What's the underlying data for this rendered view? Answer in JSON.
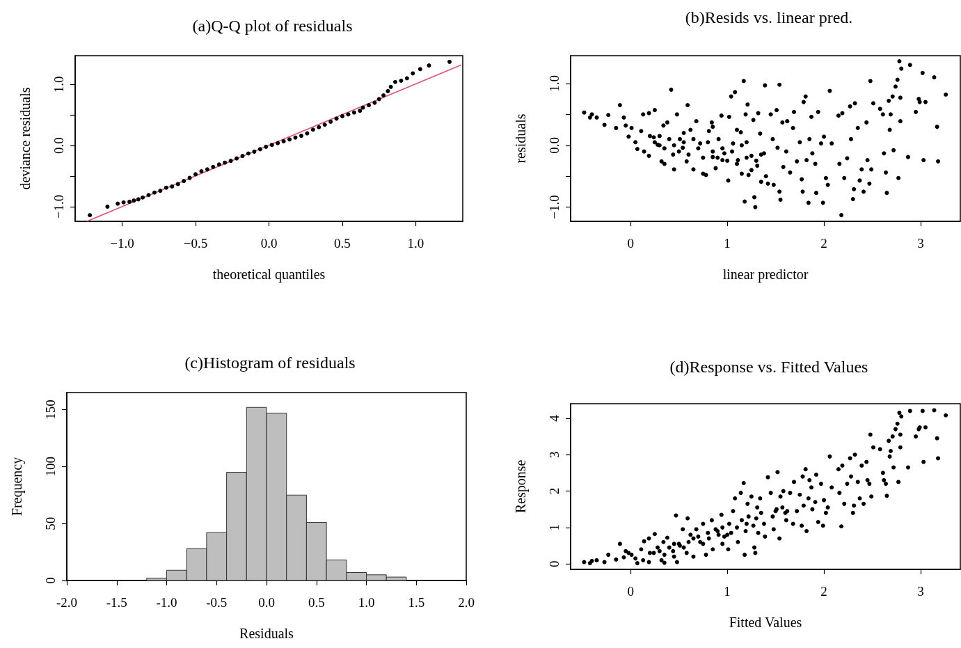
{
  "chart_data": [
    {
      "type": "scatter",
      "title": "(a)Q-Q plot of residuals",
      "xlabel": "theoretical quantiles",
      "ylabel": "deviance residuals",
      "xlim": [
        -1.32,
        1.32
      ],
      "ylim": [
        -1.24,
        1.47
      ],
      "xticks": [
        {
          "value": -1,
          "label": "−1.0"
        },
        {
          "value": -0.5,
          "label": "−0.5"
        },
        {
          "value": 0,
          "label": "0.0"
        },
        {
          "value": 0.5,
          "label": "0.5"
        },
        {
          "value": 1,
          "label": "1.0"
        }
      ],
      "yticks": [
        {
          "value": -1,
          "label": "−1.0"
        },
        {
          "value": -0.5,
          "label": null
        },
        {
          "value": 0,
          "label": "0.0"
        },
        {
          "value": 0.5,
          "label": null
        },
        {
          "value": 1,
          "label": "1.0"
        }
      ],
      "marker": "circle",
      "series": [
        {
          "color": "#000000",
          "x": [
            -1.22,
            -1.1,
            -1.03,
            -0.99,
            -0.95,
            -0.92,
            -0.89,
            -0.86,
            -0.82,
            -0.78,
            -0.74,
            -0.7,
            -0.66,
            -0.62,
            -0.58,
            -0.54,
            -0.5,
            -0.46,
            -0.42,
            -0.38,
            -0.34,
            -0.3,
            -0.26,
            -0.22,
            -0.18,
            -0.14,
            -0.1,
            -0.06,
            -0.02,
            0.02,
            0.06,
            0.1,
            0.14,
            0.18,
            0.22,
            0.26,
            0.3,
            0.34,
            0.38,
            0.42,
            0.46,
            0.5,
            0.54,
            0.58,
            0.62,
            0.64,
            0.68,
            0.72,
            0.75,
            0.78,
            0.81,
            0.83,
            0.86,
            0.9,
            0.94,
            0.98,
            1.03,
            1.09,
            1.23
          ],
          "values": [
            -1.14,
            -1.0,
            -0.95,
            -0.93,
            -0.92,
            -0.9,
            -0.88,
            -0.85,
            -0.81,
            -0.77,
            -0.74,
            -0.69,
            -0.67,
            -0.63,
            -0.58,
            -0.53,
            -0.47,
            -0.42,
            -0.39,
            -0.35,
            -0.31,
            -0.28,
            -0.25,
            -0.21,
            -0.17,
            -0.13,
            -0.1,
            -0.06,
            -0.02,
            0.01,
            0.04,
            0.07,
            0.1,
            0.13,
            0.16,
            0.2,
            0.26,
            0.3,
            0.34,
            0.39,
            0.44,
            0.48,
            0.51,
            0.54,
            0.57,
            0.62,
            0.66,
            0.7,
            0.76,
            0.82,
            0.89,
            0.96,
            1.04,
            1.06,
            1.1,
            1.18,
            1.25,
            1.31,
            1.37
          ]
        },
        {
          "type": "line",
          "marker": "none",
          "color": "#df536b",
          "x": [
            -1.24,
            1.31
          ],
          "values": [
            -1.24,
            1.32
          ]
        }
      ]
    },
    {
      "type": "scatter",
      "title": "(b)Resids vs. linear pred.",
      "xlabel": "linear predictor",
      "ylabel": "residuals",
      "xlim": [
        -0.62,
        3.41
      ],
      "ylim": [
        -1.23,
        1.45
      ],
      "xticks": [
        0,
        1,
        2,
        3
      ],
      "yticks": [
        {
          "value": -1,
          "label": "−1.0"
        },
        {
          "value": -0.5,
          "label": null
        },
        {
          "value": 0,
          "label": "0.0"
        },
        {
          "value": 0.5,
          "label": null
        },
        {
          "value": 1,
          "label": "1.0"
        }
      ],
      "marker": "circle",
      "series": [
        {
          "color": "#000000",
          "x": [
            -0.48,
            -0.42,
            -0.4,
            -0.35,
            -0.27,
            -0.23,
            -0.15,
            -0.11,
            -0.07,
            -0.05,
            -0.02,
            0.01,
            0.05,
            0.07,
            0.11,
            0.13,
            0.14,
            0.19,
            0.19,
            0.24,
            0.25,
            0.28,
            0.32,
            0.34,
            0.35,
            0.38,
            0.42,
            0.44,
            0.45,
            0.48,
            0.51,
            0.54,
            0.58,
            0.59,
            0.62,
            0.65,
            0.68,
            0.72,
            0.75,
            0.78,
            0.81,
            0.84,
            0.85,
            0.88,
            0.91,
            0.94,
            0.95,
            0.97,
            1.01,
            1.02,
            1.04,
            1.06,
            1.08,
            1.11,
            1.14,
            1.15,
            1.17,
            1.18,
            1.19,
            1.21,
            1.22,
            1.25,
            1.27,
            1.28,
            1.29,
            1.31,
            1.32,
            1.34,
            1.35,
            1.38,
            1.39,
            1.42,
            1.45,
            1.47,
            1.48,
            1.51,
            1.52,
            1.54,
            1.54,
            1.55,
            1.57,
            1.58,
            1.61,
            1.62,
            1.65,
            1.68,
            1.69,
            1.72,
            1.75,
            1.77,
            1.78,
            1.79,
            1.81,
            1.82,
            1.84,
            1.85,
            1.87,
            1.88,
            1.91,
            1.92,
            1.94,
            1.97,
            1.99,
            2.0,
            2.02,
            2.04,
            2.06,
            2.08,
            2.15,
            2.16,
            2.18,
            2.19,
            2.21,
            2.24,
            2.27,
            2.28,
            2.3,
            2.31,
            2.32,
            2.35,
            2.37,
            2.39,
            2.41,
            2.44,
            2.45,
            2.47,
            2.48,
            2.49,
            2.51,
            2.58,
            2.61,
            2.62,
            2.64,
            2.65,
            2.67,
            2.68,
            2.69,
            2.71,
            2.72,
            2.74,
            2.76,
            2.77,
            2.78,
            2.79,
            2.79,
            2.8,
            2.87,
            2.89,
            2.95,
            2.98,
            2.99,
            3.02,
            3.03,
            3.05,
            3.14,
            3.17,
            3.18,
            3.26,
            0.2,
            0.25,
            0.3,
            0.35,
            0.4,
            0.45,
            0.5,
            0.55,
            0.6,
            0.65,
            0.7,
            0.75,
            0.8,
            0.85,
            0.9,
            0.95,
            1.0,
            1.05,
            1.1,
            1.15,
            1.2,
            1.25,
            1.3,
            1.35,
            1.4,
            0.3,
            0.55,
            0.85,
            1.1,
            1.2
          ],
          "values": [
            0.53,
            0.45,
            0.5,
            0.45,
            0.33,
            0.49,
            0.28,
            0.65,
            0.45,
            0.32,
            0.14,
            0.28,
            0.05,
            -0.06,
            0.23,
            0.5,
            -0.1,
            0.52,
            -0.17,
            0.13,
            0.57,
            0.01,
            -0.26,
            0.32,
            -0.3,
            0.37,
            0.9,
            -0.15,
            -0.39,
            0.5,
            0.1,
            -0.04,
            -0.26,
            0.65,
            0.25,
            -0.39,
            0.39,
            0.03,
            -0.46,
            -0.48,
            0.23,
            0.37,
            -0.19,
            -0.37,
            0.1,
            0.48,
            -0.24,
            -0.13,
            -0.57,
            0.46,
            0.79,
            0.03,
            0.86,
            -0.24,
            0.21,
            -0.46,
            1.04,
            -0.91,
            0.5,
            0.66,
            -0.48,
            -0.17,
            0.41,
            -0.84,
            -1.0,
            -0.33,
            0.52,
            0.19,
            -0.59,
            -0.13,
            0.97,
            -0.62,
            0.5,
            0.1,
            -0.64,
            0.57,
            -0.04,
            0.98,
            -0.75,
            -0.88,
            0.37,
            -0.35,
            -0.1,
            0.39,
            -0.44,
            0.28,
            0.54,
            -0.26,
            0.05,
            -0.55,
            -0.75,
            0.7,
            0.79,
            -0.24,
            -0.93,
            0.1,
            0.46,
            -0.13,
            -0.3,
            -0.77,
            0.54,
            0.03,
            -0.93,
            0.14,
            -0.53,
            -0.64,
            0.88,
            0.03,
            0.48,
            -0.3,
            -1.13,
            0.52,
            -0.53,
            -0.21,
            0.63,
            0.1,
            -0.87,
            -0.71,
            0.68,
            0.28,
            -0.57,
            -0.39,
            -0.75,
            0.37,
            -0.24,
            -0.62,
            1.04,
            -0.39,
            0.68,
            0.59,
            0.5,
            -0.13,
            -0.44,
            -0.77,
            0.72,
            0.25,
            0.5,
            0.79,
            -0.08,
            0.95,
            1.06,
            -0.53,
            1.36,
            0.77,
            0.39,
            1.24,
            -0.19,
            1.3,
            0.54,
            0.75,
            0.7,
            1.17,
            -0.24,
            0.7,
            1.1,
            0.3,
            -0.26,
            0.82,
            0.15,
            0.05,
            0.0,
            -0.05,
            0.1,
            0.0,
            -0.1,
            0.05,
            -0.15,
            0.1,
            -0.05,
            -0.2,
            0.05,
            -0.1,
            -0.2,
            -0.05,
            -0.25,
            -0.1,
            -0.3,
            0.0,
            -0.2,
            -0.4,
            -0.25,
            -0.15,
            -0.5,
            0.15,
            0.2,
            0.3,
            0.25,
            0.05
          ]
        }
      ]
    },
    {
      "type": "histogram",
      "title": "(c)Histogram of residuals",
      "xlabel": "Residuals",
      "ylabel": "Frequency",
      "xlim": [
        -2,
        2
      ],
      "ylim": [
        0,
        165
      ],
      "xticks": [
        {
          "value": -2,
          "label": "-2.0"
        },
        {
          "value": -1.5,
          "label": "-1.5"
        },
        {
          "value": -1,
          "label": "-1.0"
        },
        {
          "value": -0.5,
          "label": "-0.5"
        },
        {
          "value": 0,
          "label": "0.0"
        },
        {
          "value": 0.5,
          "label": "0.5"
        },
        {
          "value": 1,
          "label": "1.0"
        },
        {
          "value": 1.5,
          "label": "1.5"
        },
        {
          "value": 2,
          "label": "2.0"
        }
      ],
      "yticks": [
        0,
        50,
        100,
        150
      ],
      "color": "#bebebe",
      "bins": [
        -1.2,
        -1.0,
        -0.8,
        -0.6,
        -0.4,
        -0.2,
        0,
        0.2,
        0.4,
        0.6,
        0.8,
        1.0,
        1.2,
        1.4
      ],
      "values": [
        2,
        9,
        28,
        42,
        95,
        152,
        147,
        75,
        51,
        18,
        7,
        5,
        3
      ]
    },
    {
      "type": "scatter",
      "title": "(d)Response vs. Fitted Values",
      "xlabel": "Fitted Values",
      "ylabel": "Response",
      "xlim": [
        -0.62,
        3.41
      ],
      "ylim": [
        -0.15,
        4.4
      ],
      "xticks": [
        0,
        1,
        2,
        3
      ],
      "yticks": [
        0,
        1,
        2,
        3,
        4
      ],
      "marker": "circle",
      "series": [
        {
          "color": "#000000",
          "x": [
            -0.48,
            -0.42,
            -0.4,
            -0.35,
            -0.27,
            -0.23,
            -0.15,
            -0.11,
            -0.07,
            -0.05,
            -0.02,
            0.01,
            0.05,
            0.07,
            0.11,
            0.13,
            0.14,
            0.19,
            0.19,
            0.24,
            0.25,
            0.28,
            0.32,
            0.34,
            0.35,
            0.38,
            0.44,
            0.45,
            0.47,
            0.48,
            0.51,
            0.54,
            0.58,
            0.59,
            0.62,
            0.65,
            0.68,
            0.72,
            0.75,
            0.78,
            0.81,
            0.84,
            0.85,
            0.88,
            0.91,
            0.94,
            0.95,
            0.97,
            1.01,
            1.02,
            1.04,
            1.06,
            1.08,
            1.11,
            1.14,
            1.15,
            1.17,
            1.18,
            1.19,
            1.21,
            1.22,
            1.25,
            1.27,
            1.28,
            1.29,
            1.31,
            1.32,
            1.34,
            1.35,
            1.38,
            1.39,
            1.42,
            1.45,
            1.47,
            1.48,
            1.51,
            1.52,
            1.54,
            1.55,
            1.57,
            1.58,
            1.61,
            1.62,
            1.65,
            1.68,
            1.69,
            1.72,
            1.75,
            1.77,
            1.78,
            1.79,
            1.81,
            1.82,
            1.84,
            1.85,
            1.87,
            1.88,
            1.91,
            1.92,
            1.94,
            1.97,
            1.99,
            2.0,
            2.02,
            2.04,
            2.06,
            2.08,
            2.15,
            2.16,
            2.18,
            2.19,
            2.21,
            2.24,
            2.27,
            2.28,
            2.3,
            2.31,
            2.32,
            2.35,
            2.37,
            2.39,
            2.41,
            2.44,
            2.45,
            2.47,
            2.48,
            2.49,
            2.51,
            2.58,
            2.61,
            2.62,
            2.64,
            2.65,
            2.67,
            2.68,
            2.69,
            2.71,
            2.72,
            2.74,
            2.76,
            2.77,
            2.78,
            2.79,
            2.79,
            2.8,
            2.87,
            2.89,
            2.95,
            2.98,
            2.99,
            3.02,
            3.03,
            3.05,
            3.14,
            3.17,
            3.18,
            3.26,
            0.2,
            0.3,
            0.4,
            0.5,
            0.6,
            0.7,
            0.8,
            0.9,
            1.0,
            1.1,
            1.2,
            0.35,
            0.55,
            0.75,
            0.95,
            1.3,
            1.5,
            1.6,
            0.45,
            0.65
          ],
          "values": [
            0.05,
            0.02,
            0.08,
            0.1,
            0.05,
            0.25,
            0.12,
            0.55,
            0.18,
            0.35,
            0.3,
            0.25,
            0.15,
            0.02,
            0.4,
            0.1,
            0.62,
            0.05,
            0.7,
            0.3,
            0.82,
            0.45,
            0.1,
            0.6,
            0.03,
            0.72,
            0.35,
            0.55,
            1.33,
            0.05,
            0.5,
            0.95,
            0.3,
            1.25,
            0.8,
            0.2,
            0.95,
            0.6,
            1.1,
            0.25,
            0.7,
            1.2,
            0.4,
            0.95,
            0.8,
            1.35,
            0.55,
            0.75,
            0.4,
            1.1,
            0.85,
            1.45,
            1.8,
            0.6,
            1.95,
            1.2,
            2.22,
            0.25,
            0.9,
            1.65,
            1.3,
            1.85,
            1.05,
            0.45,
            0.3,
            1.55,
            0.85,
            1.8,
            1.4,
            1.1,
            0.75,
            2.38,
            1.95,
            1.3,
            0.95,
            1.5,
            2.52,
            0.7,
            1.85,
            1.55,
            2.0,
            1.2,
            1.45,
            1.95,
            1.1,
            2.25,
            1.45,
            1.9,
            1.05,
            2.4,
            1.6,
            2.6,
            0.9,
            1.8,
            2.3,
            2.1,
            1.5,
            1.7,
            2.45,
            1.15,
            2.2,
            1.05,
            1.75,
            1.4,
            1.55,
            2.95,
            2.1,
            2.6,
            1.95,
            1.03,
            2.7,
            1.65,
            2.2,
            2.9,
            2.4,
            1.4,
            1.6,
            3.0,
            2.25,
            1.8,
            2.7,
            1.65,
            2.8,
            2.3,
            2.2,
            3.55,
            1.85,
            3.2,
            3.15,
            2.5,
            2.3,
            2.2,
            1.87,
            3.38,
            2.95,
            3.1,
            3.5,
            2.65,
            3.7,
            3.85,
            2.25,
            4.15,
            3.55,
            3.2,
            4.05,
            2.65,
            4.2,
            3.5,
            3.7,
            3.75,
            4.2,
            2.8,
            3.75,
            4.22,
            3.45,
            2.9,
            4.08,
            0.3,
            0.35,
            0.45,
            0.55,
            0.6,
            0.75,
            0.85,
            0.9,
            0.8,
            1.0,
            1.1,
            0.25,
            0.45,
            0.55,
            1.0,
            1.25,
            1.45,
            1.4,
            0.2,
            0.7
          ]
        }
      ]
    }
  ]
}
